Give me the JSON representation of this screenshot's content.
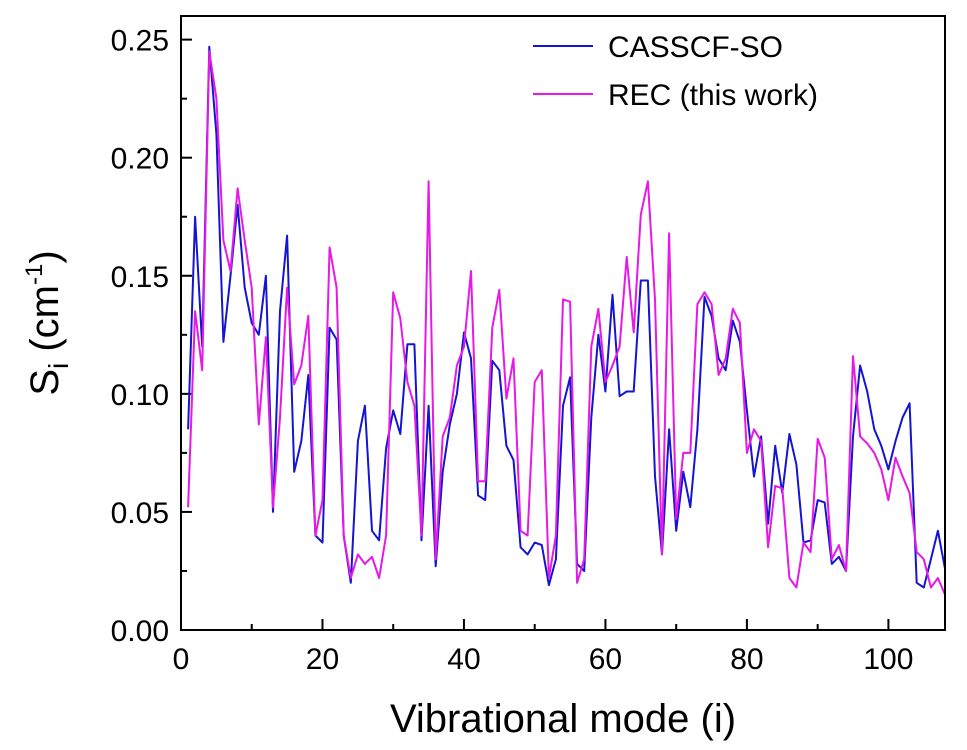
{
  "chart_data": {
    "type": "line",
    "title": "",
    "xlabel": "Vibrational mode (i)",
    "ylabel": {
      "main": "S",
      "sub": "i",
      "unit_open": " (cm",
      "unit_sup": "-1",
      "unit_close": ")"
    },
    "xlim": [
      0,
      108
    ],
    "ylim": [
      0,
      0.26
    ],
    "x_ticks": [
      {
        "value": 0,
        "label": "0"
      },
      {
        "value": 20,
        "label": "20"
      },
      {
        "value": 40,
        "label": "40"
      },
      {
        "value": 60,
        "label": "60"
      },
      {
        "value": 80,
        "label": "80"
      },
      {
        "value": 100,
        "label": "100"
      }
    ],
    "y_ticks": [
      {
        "value": 0,
        "label": "0.00"
      },
      {
        "value": 0.05,
        "label": "0.05"
      },
      {
        "value": 0.1,
        "label": "0.10"
      },
      {
        "value": 0.15,
        "label": "0.15"
      },
      {
        "value": 0.2,
        "label": "0.20"
      },
      {
        "value": 0.25,
        "label": "0.25"
      }
    ],
    "x_minor_step": 10,
    "y_minor_step": 0.025,
    "grid": false,
    "legend_position": "top-right",
    "x": [
      1,
      2,
      3,
      4,
      5,
      6,
      7,
      8,
      9,
      10,
      11,
      12,
      13,
      14,
      15,
      16,
      17,
      18,
      19,
      20,
      21,
      22,
      23,
      24,
      25,
      26,
      27,
      28,
      29,
      30,
      31,
      32,
      33,
      34,
      35,
      36,
      37,
      38,
      39,
      40,
      41,
      42,
      43,
      44,
      45,
      46,
      47,
      48,
      49,
      50,
      51,
      52,
      53,
      54,
      55,
      56,
      57,
      58,
      59,
      60,
      61,
      62,
      63,
      64,
      65,
      66,
      67,
      68,
      69,
      70,
      71,
      72,
      73,
      74,
      75,
      76,
      77,
      78,
      79,
      80,
      81,
      82,
      83,
      84,
      85,
      86,
      87,
      88,
      89,
      90,
      91,
      92,
      93,
      94,
      95,
      96,
      97,
      98,
      99,
      100,
      101,
      102,
      103,
      104,
      105,
      106,
      107,
      108
    ],
    "series": [
      {
        "name": "CASSCF-SO",
        "color": "#1414d2",
        "values": [
          0.085,
          0.175,
          0.12,
          0.247,
          0.21,
          0.122,
          0.15,
          0.18,
          0.145,
          0.13,
          0.125,
          0.15,
          0.05,
          0.135,
          0.167,
          0.067,
          0.08,
          0.108,
          0.04,
          0.037,
          0.128,
          0.123,
          0.04,
          0.02,
          0.08,
          0.095,
          0.042,
          0.038,
          0.077,
          0.093,
          0.083,
          0.121,
          0.121,
          0.038,
          0.095,
          0.027,
          0.067,
          0.087,
          0.1,
          0.126,
          0.115,
          0.057,
          0.055,
          0.114,
          0.11,
          0.078,
          0.072,
          0.035,
          0.032,
          0.037,
          0.036,
          0.019,
          0.03,
          0.095,
          0.107,
          0.028,
          0.025,
          0.09,
          0.125,
          0.101,
          0.142,
          0.099,
          0.101,
          0.101,
          0.148,
          0.148,
          0.065,
          0.032,
          0.085,
          0.042,
          0.067,
          0.052,
          0.085,
          0.141,
          0.133,
          0.115,
          0.11,
          0.131,
          0.122,
          0.093,
          0.065,
          0.082,
          0.045,
          0.078,
          0.058,
          0.083,
          0.07,
          0.037,
          0.038,
          0.055,
          0.054,
          0.028,
          0.031,
          0.025,
          0.082,
          0.112,
          0.101,
          0.085,
          0.078,
          0.068,
          0.08,
          0.09,
          0.096,
          0.02,
          0.018,
          0.03,
          0.042,
          0.026
        ]
      },
      {
        "name": "REC (this work)",
        "color": "#e619e6",
        "values": [
          0.052,
          0.135,
          0.11,
          0.245,
          0.225,
          0.165,
          0.152,
          0.187,
          0.165,
          0.145,
          0.087,
          0.124,
          0.052,
          0.09,
          0.145,
          0.104,
          0.112,
          0.133,
          0.04,
          0.055,
          0.162,
          0.145,
          0.04,
          0.022,
          0.032,
          0.028,
          0.031,
          0.022,
          0.04,
          0.143,
          0.132,
          0.105,
          0.095,
          0.04,
          0.19,
          0.03,
          0.082,
          0.09,
          0.112,
          0.12,
          0.152,
          0.063,
          0.063,
          0.128,
          0.144,
          0.098,
          0.115,
          0.042,
          0.04,
          0.105,
          0.11,
          0.022,
          0.04,
          0.14,
          0.139,
          0.02,
          0.03,
          0.12,
          0.136,
          0.105,
          0.112,
          0.12,
          0.158,
          0.126,
          0.176,
          0.19,
          0.14,
          0.032,
          0.168,
          0.047,
          0.075,
          0.075,
          0.138,
          0.143,
          0.138,
          0.108,
          0.115,
          0.136,
          0.13,
          0.075,
          0.085,
          0.08,
          0.035,
          0.061,
          0.06,
          0.022,
          0.018,
          0.037,
          0.033,
          0.081,
          0.073,
          0.03,
          0.036,
          0.025,
          0.116,
          0.082,
          0.079,
          0.075,
          0.068,
          0.055,
          0.073,
          0.065,
          0.058,
          0.033,
          0.03,
          0.018,
          0.022,
          0.015
        ]
      }
    ]
  }
}
